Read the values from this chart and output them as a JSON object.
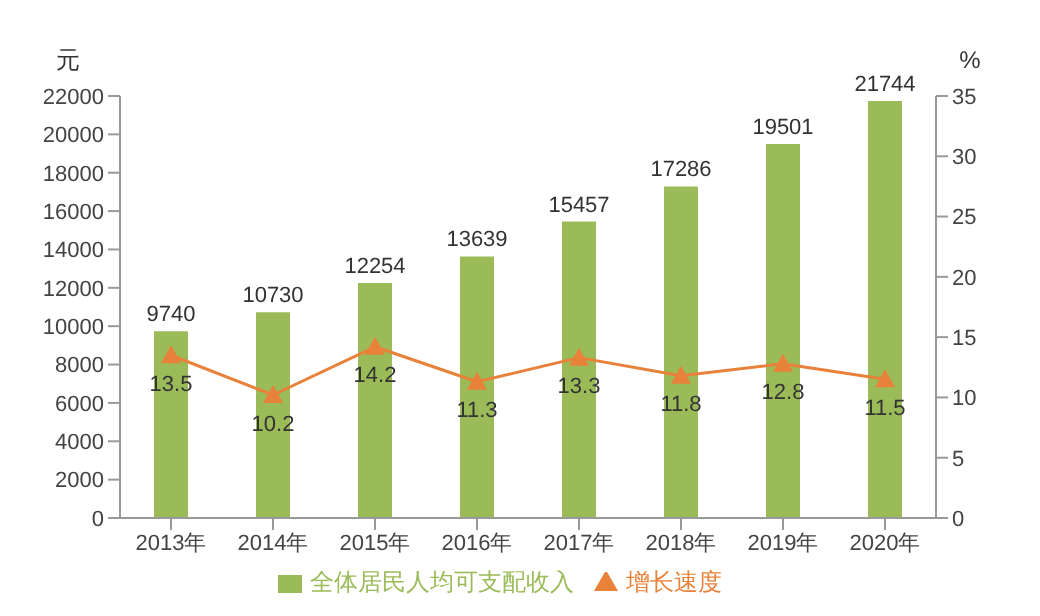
{
  "chart_data": {
    "type": "bar",
    "ylabel": "元",
    "y2label": "%",
    "categories": [
      "2013年",
      "2014年",
      "2015年",
      "2016年",
      "2017年",
      "2018年",
      "2019年",
      "2020年"
    ],
    "series": [
      {
        "name": "全体居民人均可支配收入",
        "color": "#9bbb59",
        "values": [
          9740,
          10730,
          12254,
          13639,
          15457,
          17286,
          19501,
          21744
        ]
      },
      {
        "name": "增长速度",
        "type": "line",
        "axis": "y2",
        "color": "#e8823a",
        "values": [
          13.5,
          10.2,
          14.2,
          11.3,
          13.3,
          11.8,
          12.8,
          11.5
        ]
      }
    ],
    "ylim": [
      0,
      22000
    ],
    "yticks": [
      0,
      2000,
      4000,
      6000,
      8000,
      10000,
      12000,
      14000,
      16000,
      18000,
      20000,
      22000
    ],
    "y2lim": [
      0,
      35
    ],
    "y2ticks": [
      0,
      5,
      10,
      15,
      20,
      25,
      30,
      35
    ],
    "data_labels": true,
    "marker": "triangle",
    "legend": "bottom"
  }
}
